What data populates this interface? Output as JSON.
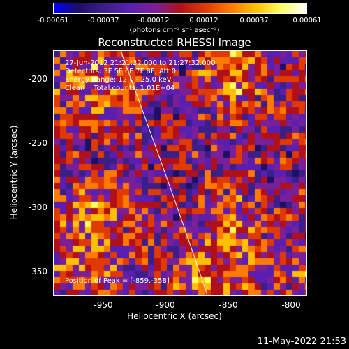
{
  "colorbar": {
    "ticks": [
      "-0.00061",
      "-0.00037",
      "-0.00012",
      "0.00012",
      "0.00037",
      "0.00061"
    ],
    "units": "(photons cm⁻² s⁻¹ asec⁻²)"
  },
  "title": "Reconstructed RHESSI Image",
  "info": {
    "time": "27-Jun-2012 21:21:32.000 to 21:27:32.000",
    "detectors": "Detectors: 3F 5F 6F 7F 8F, Att 0",
    "energy": "Energy Range: 12.0 - 25.0 keV",
    "clean": "Clean    Total counts: 1.01E+04",
    "peak": "Position of Peak = [-859,-358]"
  },
  "x_ticks": [
    "-950",
    "-900",
    "-850",
    "-800"
  ],
  "y_ticks": [
    "-200",
    "-250",
    "-300",
    "-350"
  ],
  "xlabel": "Heliocentric X (arcsec)",
  "ylabel": "Heliocentric Y (arcsec)",
  "stamp": "11-May-2022 21:53",
  "colors": {
    "background": "#000000",
    "colormap": [
      "#0000ff",
      "#1e0f66",
      "#3a1f8a",
      "#5a1fb0",
      "#7a1f9a",
      "#b0101a",
      "#e03a00",
      "#ff7a00",
      "#ffc000",
      "#ffff60",
      "#ffffff"
    ]
  }
}
